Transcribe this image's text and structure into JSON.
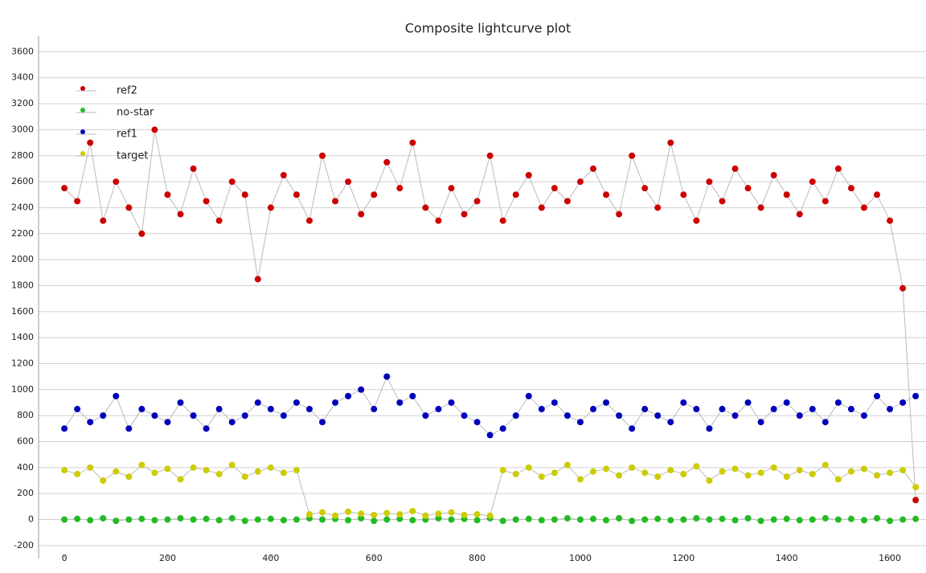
{
  "chart_data": {
    "type": "scatter",
    "title": "Composite lightcurve plot",
    "x": [
      0,
      25,
      50,
      75,
      100,
      125,
      150,
      175,
      200,
      225,
      250,
      275,
      300,
      325,
      350,
      375,
      400,
      425,
      450,
      475,
      500,
      525,
      550,
      575,
      600,
      625,
      650,
      675,
      700,
      725,
      750,
      775,
      800,
      825,
      850,
      875,
      900,
      925,
      950,
      975,
      1000,
      1025,
      1050,
      1075,
      1100,
      1125,
      1150,
      1175,
      1200,
      1225,
      1250,
      1275,
      1300,
      1325,
      1350,
      1375,
      1400,
      1425,
      1450,
      1475,
      1500,
      1525,
      1550,
      1575,
      1600,
      1625,
      1650
    ],
    "series": [
      {
        "name": "ref2",
        "color": "#cc0000",
        "values": [
          2550,
          2450,
          2900,
          2300,
          2600,
          2400,
          2200,
          3000,
          2500,
          2350,
          2700,
          2450,
          2300,
          2600,
          2500,
          1850,
          2400,
          2650,
          2500,
          2300,
          2800,
          2450,
          2600,
          2350,
          2500,
          2750,
          2550,
          2900,
          2400,
          2300,
          2550,
          2350,
          2450,
          2800,
          2300,
          2500,
          2650,
          2400,
          2550,
          2450,
          2600,
          2700,
          2500,
          2350,
          2800,
          2550,
          2400,
          2900,
          2500,
          2300,
          2600,
          2450,
          2700,
          2550,
          2400,
          2650,
          2500,
          2350,
          2600,
          2450,
          2700,
          2550,
          2400,
          2500,
          2300,
          1780,
          150
        ]
      },
      {
        "name": "no-star",
        "color": "#22bb22",
        "values": [
          0,
          5,
          -5,
          10,
          -10,
          0,
          5,
          -5,
          0,
          10,
          0,
          5,
          -5,
          10,
          -10,
          0,
          5,
          -5,
          0,
          10,
          0,
          5,
          -5,
          10,
          -10,
          0,
          5,
          -5,
          0,
          10,
          0,
          5,
          -5,
          10,
          -10,
          0,
          5,
          -5,
          0,
          10,
          0,
          5,
          -5,
          10,
          -10,
          0,
          5,
          -5,
          0,
          10,
          0,
          5,
          -5,
          10,
          -10,
          0,
          5,
          -5,
          0,
          10,
          0,
          5,
          -5,
          10,
          -10,
          0,
          5
        ]
      },
      {
        "name": "ref1",
        "color": "#0000bb",
        "values": [
          700,
          850,
          750,
          800,
          950,
          700,
          850,
          800,
          750,
          900,
          800,
          700,
          850,
          750,
          800,
          900,
          850,
          800,
          900,
          850,
          750,
          900,
          950,
          1000,
          850,
          1100,
          900,
          950,
          800,
          850,
          900,
          800,
          750,
          650,
          700,
          800,
          950,
          850,
          900,
          800,
          750,
          850,
          900,
          800,
          700,
          850,
          800,
          750,
          900,
          850,
          700,
          850,
          800,
          900,
          750,
          850,
          900,
          800,
          850,
          750,
          900,
          850,
          800,
          950,
          850,
          900,
          950
        ]
      },
      {
        "name": "target",
        "color": "#cccc00",
        "values": [
          380,
          350,
          400,
          300,
          370,
          330,
          420,
          360,
          390,
          310,
          400,
          380,
          350,
          420,
          330,
          370,
          400,
          360,
          380,
          40,
          55,
          30,
          60,
          45,
          35,
          50,
          40,
          65,
          30,
          45,
          55,
          35,
          40,
          30,
          380,
          350,
          400,
          330,
          360,
          420,
          310,
          370,
          390,
          340,
          400,
          360,
          330,
          380,
          350,
          410,
          300,
          370,
          390,
          340,
          360,
          400,
          330,
          380,
          350,
          420,
          310,
          370,
          390,
          340,
          360,
          380,
          250
        ]
      }
    ],
    "xlim": [
      -50,
      1670
    ],
    "ylim": [
      -300,
      3720
    ],
    "xticks": [
      0,
      200,
      400,
      600,
      800,
      1000,
      1200,
      1400,
      1600
    ],
    "yticks": [
      -200,
      0,
      200,
      400,
      600,
      800,
      1000,
      1200,
      1400,
      1600,
      1800,
      2000,
      2200,
      2400,
      2600,
      2800,
      3000,
      3200,
      3400,
      3600
    ],
    "grid": true,
    "legend": "upper left",
    "line_color": "#bbbbbb"
  }
}
